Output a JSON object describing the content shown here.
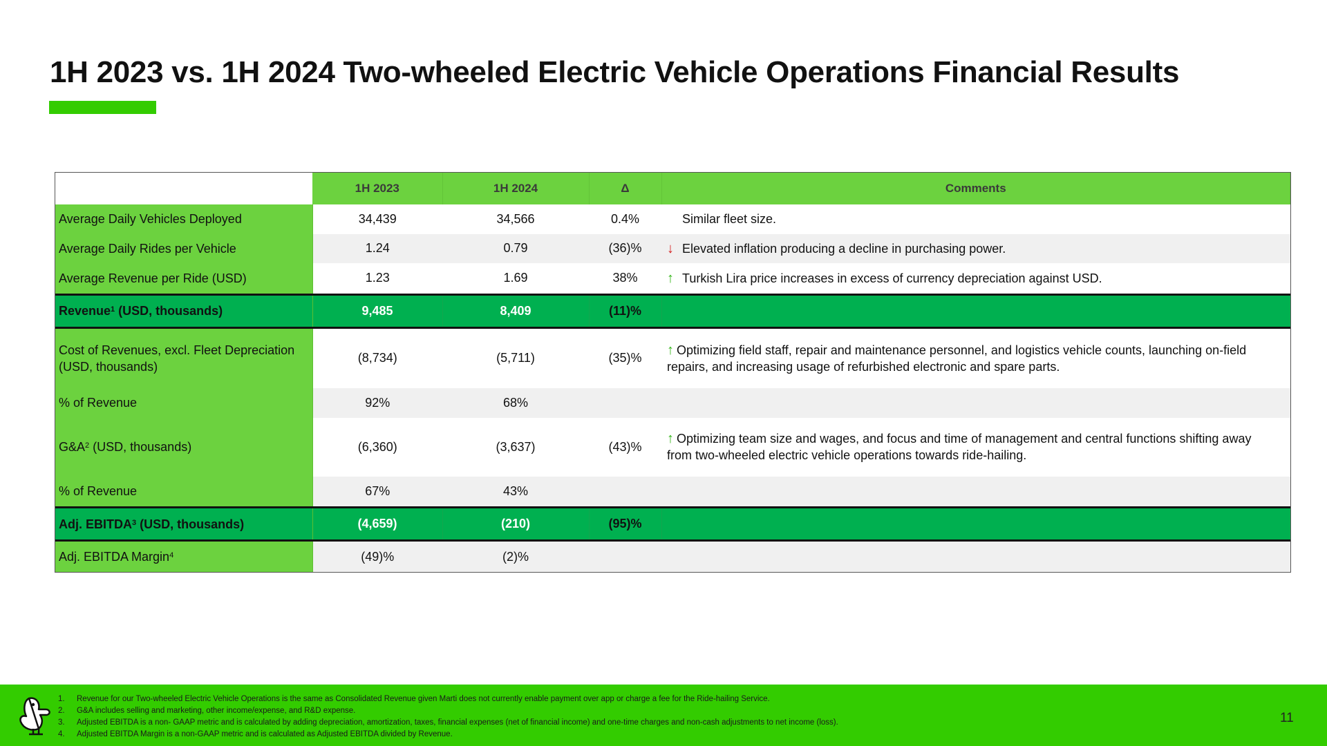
{
  "slide": {
    "title": "1H 2023 vs. 1H 2024 Two-wheeled Electric Vehicle Operations Financial Results",
    "accent_color": "#33cc00",
    "page_number": "11"
  },
  "table": {
    "headers": [
      "",
      "1H 2023",
      "1H 2024",
      "Δ",
      "Comments"
    ],
    "rows": [
      {
        "label": "Average Daily Vehicles Deployed",
        "sup": "",
        "label_suffix": "",
        "h1_2023": "34,439",
        "h1_2024": "34,566",
        "delta": "0.4%",
        "arrow": "",
        "comment": "Similar fleet size."
      },
      {
        "label": "Average Daily Rides per Vehicle",
        "sup": "",
        "label_suffix": "",
        "h1_2023": "1.24",
        "h1_2024": "0.79",
        "delta": "(36)%",
        "arrow": "↓",
        "comment": "Elevated inflation producing a decline in purchasing power."
      },
      {
        "label": "Average Revenue per Ride (USD)",
        "sup": "",
        "label_suffix": "",
        "h1_2023": "1.23",
        "h1_2024": "1.69",
        "delta": "38%",
        "arrow": "↑",
        "comment": "Turkish Lira price increases in excess of currency depreciation against USD."
      },
      {
        "label": "Revenue",
        "sup": "1",
        "label_suffix": " (USD, thousands)",
        "h1_2023": "9,485",
        "h1_2024": "8,409",
        "delta": "(11)%",
        "arrow": "",
        "comment": ""
      },
      {
        "label": "Cost of Revenues, excl. Fleet Depreciation (USD, thousands)",
        "sup": "",
        "label_suffix": "",
        "h1_2023": "(8,734)",
        "h1_2024": "(5,711)",
        "delta": "(35)%",
        "arrow": "↑",
        "comment": "Optimizing field staff, repair and maintenance personnel, and logistics vehicle counts, launching on-field repairs, and increasing usage of refurbished electronic and spare parts."
      },
      {
        "label": "% of Revenue",
        "sup": "",
        "label_suffix": "",
        "h1_2023": "92%",
        "h1_2024": "68%",
        "delta": "",
        "arrow": "",
        "comment": ""
      },
      {
        "label": "G&A",
        "sup": "2",
        "label_suffix": " (USD, thousands)",
        "h1_2023": "(6,360)",
        "h1_2024": "(3,637)",
        "delta": "(43)%",
        "arrow": "↑",
        "comment": "Optimizing team size and wages, and focus and time of management and central functions shifting away from two-wheeled electric vehicle operations towards ride-hailing."
      },
      {
        "label": "% of Revenue",
        "sup": "",
        "label_suffix": "",
        "h1_2023": "67%",
        "h1_2024": "43%",
        "delta": "",
        "arrow": "",
        "comment": ""
      },
      {
        "label": "Adj. EBITDA",
        "sup": "3",
        "label_suffix": " (USD, thousands)",
        "h1_2023": "(4,659)",
        "h1_2024": "(210)",
        "delta": "(95)%",
        "arrow": "",
        "comment": ""
      },
      {
        "label": "Adj. EBITDA Margin",
        "sup": "4",
        "label_suffix": "",
        "h1_2023": "(49)%",
        "h1_2024": "(2)%",
        "delta": "",
        "arrow": "",
        "comment": ""
      }
    ]
  },
  "footnotes": [
    {
      "num": "1.",
      "text": "Revenue for our Two-wheeled Electric Vehicle Operations is the same as Consolidated Revenue given Marti does not currently enable payment over app or charge a fee for the Ride-hailing Service."
    },
    {
      "num": "2.",
      "text": "G&A includes selling and marketing, other income/expense, and R&D expense."
    },
    {
      "num": "3.",
      "text": "Adjusted EBITDA is  a non- GAAP metric and is calculated by adding depreciation, amortization, taxes, financial expenses (net of financial income) and one-time charges and non-cash adjustments to net income (loss)."
    },
    {
      "num": "4.",
      "text": "Adjusted EBITDA Margin is a non-GAAP metric and is calculated as Adjusted EBITDA divided by Revenue."
    }
  ],
  "icons": {
    "logo": "duck-mascot-logo-icon"
  }
}
